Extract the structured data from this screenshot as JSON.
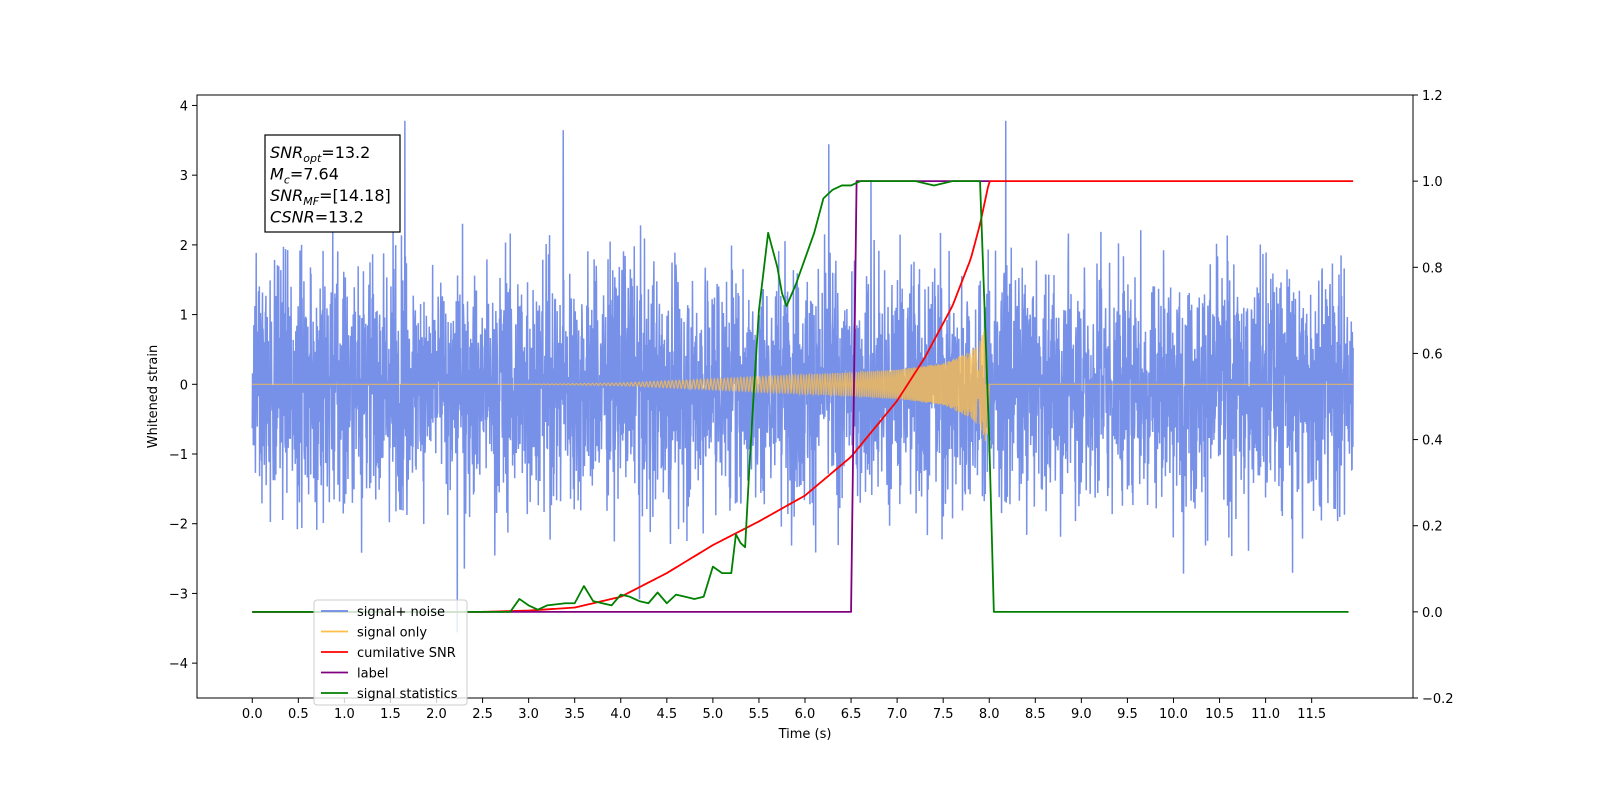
{
  "chart_data": {
    "type": "line",
    "title": "",
    "xlabel": "Time (s)",
    "ylabel": "Whitened strain",
    "xlim": [
      -0.6,
      12.6
    ],
    "ylim": [
      -4.5,
      4.15
    ],
    "y2lim": [
      -0.2,
      1.2
    ],
    "x_ticks": [
      "0.0",
      "0.5",
      "1.0",
      "1.5",
      "2.0",
      "2.5",
      "3.0",
      "3.5",
      "4.0",
      "4.5",
      "5.0",
      "5.5",
      "6.0",
      "6.5",
      "7.0",
      "7.5",
      "8.0",
      "8.5",
      "9.0",
      "9.5",
      "10.0",
      "10.5",
      "11.0",
      "11.5"
    ],
    "y_ticks": [
      "−4",
      "−3",
      "−2",
      "−1",
      "0",
      "1",
      "2",
      "3",
      "4"
    ],
    "y2_ticks": [
      "−0.2",
      "0.0",
      "0.2",
      "0.4",
      "0.6",
      "0.8",
      "1.0",
      "1.2"
    ],
    "grid": false,
    "legend_position": "lower-left",
    "annotation": {
      "lines": [
        {
          "base": "SNR",
          "sub": "opt",
          "rest": "=13.2"
        },
        {
          "base": "M",
          "sub": "c",
          "rest": "=7.64"
        },
        {
          "base": "SNR",
          "sub": "MF",
          "rest": "=[14.18]"
        },
        {
          "base": "CSNR",
          "sub": "",
          "rest": "=13.2"
        }
      ]
    },
    "legend": [
      {
        "label": "signal+ noise",
        "color": "#6b87e6"
      },
      {
        "label": "signal only",
        "color": "#ffbf47"
      },
      {
        "label": "cumilative SNR",
        "color": "#ff0000"
      },
      {
        "label": "label",
        "color": "#800080"
      },
      {
        "label": "signal statistics",
        "color": "#008000"
      }
    ],
    "series": [
      {
        "name": "signal+ noise",
        "axis": "left",
        "color": "#6b87e6",
        "description": "whitened noise, approx. 1-sigma scatter, spikes up to about ±3.8",
        "time_range": [
          0.0,
          11.95
        ],
        "peak_max": 3.78,
        "peak_min": -4.12
      },
      {
        "name": "signal only",
        "axis": "left",
        "color": "#ffbf47",
        "description": "chirp envelope growing from 0 to about ±0.9 near t=8.0, then 0",
        "time_range": [
          0.0,
          11.95
        ],
        "envelope": {
          "t": [
            0.0,
            3.0,
            4.0,
            5.0,
            6.0,
            6.5,
            7.0,
            7.5,
            7.8,
            7.9,
            7.98,
            8.0
          ],
          "amp": [
            0.0,
            0.0,
            0.02,
            0.08,
            0.14,
            0.17,
            0.21,
            0.3,
            0.48,
            0.62,
            0.9,
            0.0
          ]
        }
      },
      {
        "name": "cumilative SNR",
        "axis": "right",
        "color": "#ff0000",
        "x": [
          0.0,
          2.5,
          3.0,
          3.5,
          4.0,
          4.5,
          5.0,
          5.5,
          6.0,
          6.5,
          7.0,
          7.3,
          7.6,
          7.8,
          7.9,
          8.0,
          11.95
        ],
        "values": [
          0.0,
          0.0,
          0.003,
          0.01,
          0.035,
          0.09,
          0.155,
          0.21,
          0.27,
          0.36,
          0.49,
          0.59,
          0.71,
          0.82,
          0.9,
          1.0,
          1.0
        ]
      },
      {
        "name": "label",
        "axis": "right",
        "color": "#800080",
        "x": [
          0.0,
          6.5,
          6.56,
          7.0,
          7.5,
          7.6,
          7.95,
          8.0
        ],
        "values": [
          0.0,
          0.0,
          1.0,
          1.0,
          1.0,
          1.0,
          1.0,
          1.0
        ]
      },
      {
        "name": "signal statistics",
        "axis": "right",
        "color": "#008000",
        "x": [
          0.0,
          2.8,
          2.9,
          3.0,
          3.1,
          3.2,
          3.4,
          3.5,
          3.6,
          3.7,
          3.8,
          3.9,
          4.0,
          4.1,
          4.2,
          4.3,
          4.4,
          4.5,
          4.6,
          4.7,
          4.8,
          4.9,
          5.0,
          5.1,
          5.2,
          5.25,
          5.3,
          5.35,
          5.4,
          5.45,
          5.5,
          5.6,
          5.7,
          5.75,
          5.8,
          5.9,
          6.0,
          6.1,
          6.2,
          6.3,
          6.4,
          6.5,
          6.6,
          7.0,
          7.2,
          7.4,
          7.6,
          7.9,
          8.0,
          8.05,
          11.9
        ],
        "values": [
          0.0,
          0.0,
          0.03,
          0.015,
          0.005,
          0.015,
          0.02,
          0.02,
          0.06,
          0.025,
          0.02,
          0.015,
          0.04,
          0.035,
          0.025,
          0.02,
          0.045,
          0.02,
          0.04,
          0.035,
          0.03,
          0.035,
          0.105,
          0.09,
          0.09,
          0.18,
          0.16,
          0.15,
          0.35,
          0.53,
          0.7,
          0.88,
          0.8,
          0.74,
          0.71,
          0.76,
          0.82,
          0.88,
          0.96,
          0.98,
          0.99,
          0.99,
          1.0,
          1.0,
          1.0,
          0.99,
          1.0,
          1.0,
          0.4,
          0.0,
          0.0
        ]
      }
    ]
  }
}
